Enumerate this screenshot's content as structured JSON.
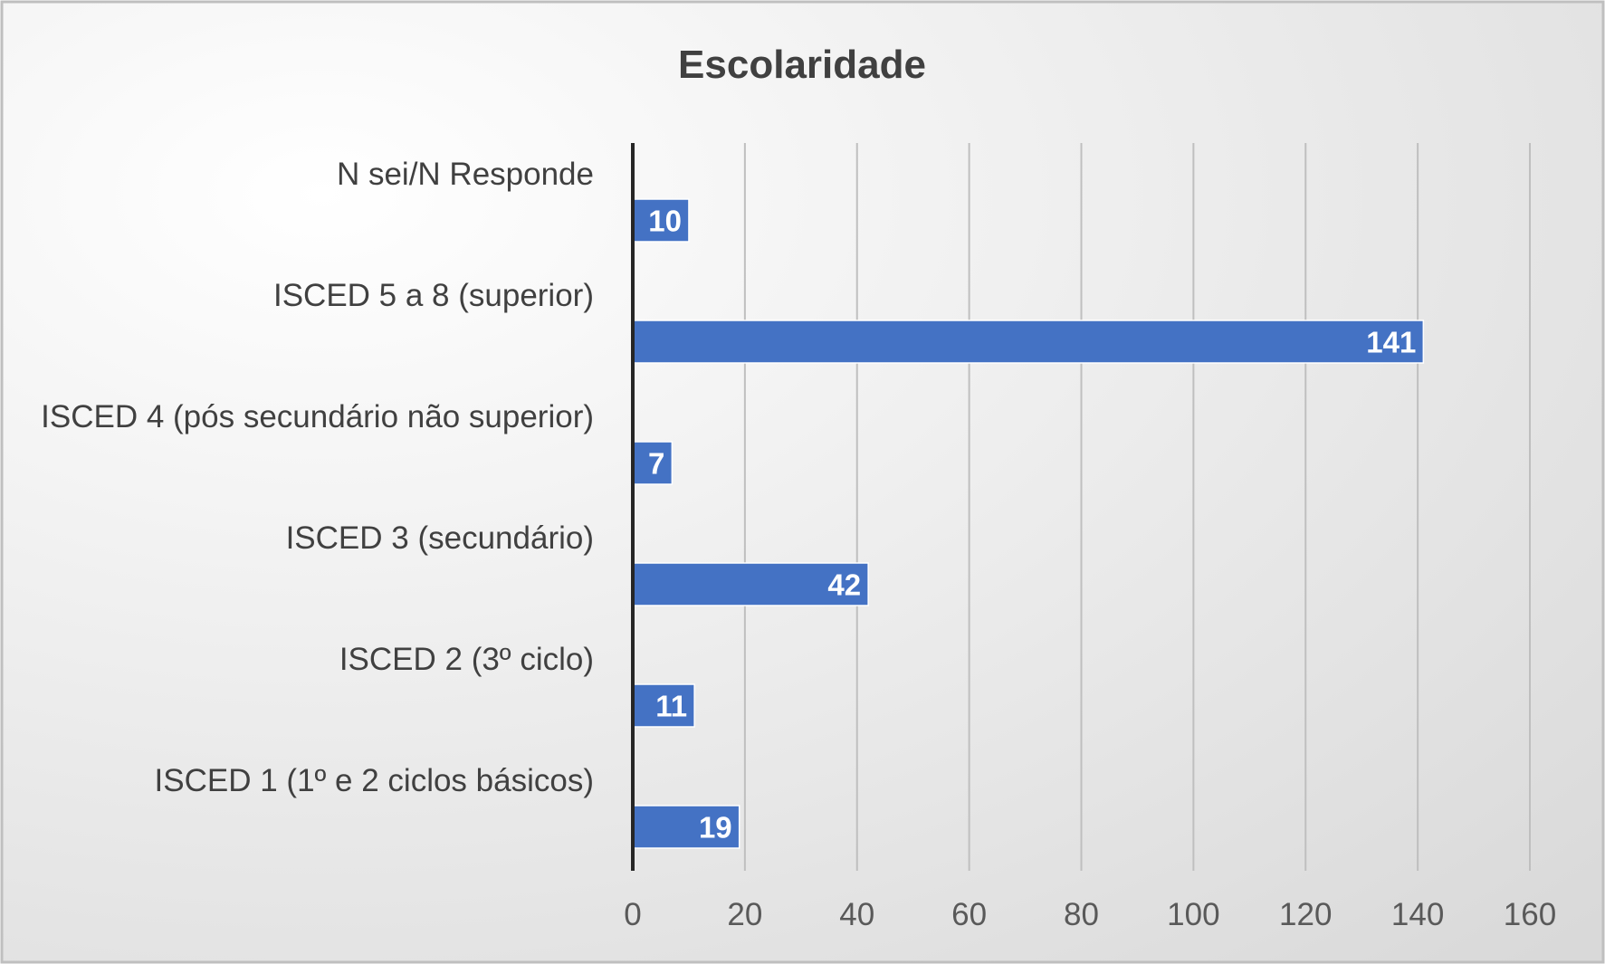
{
  "chart_data": {
    "type": "bar",
    "orientation": "horizontal",
    "title": "Escolaridade",
    "xlabel": "",
    "ylabel": "",
    "categories": [
      "N sei/N Responde",
      "ISCED 5 a 8 (superior)",
      "ISCED 4 (pós secundário não superior)",
      "ISCED 3 (secundário)",
      "ISCED 2 (3º ciclo)",
      "ISCED 1 (1º e 2 ciclos básicos)"
    ],
    "values": [
      10,
      141,
      7,
      42,
      11,
      19
    ],
    "data_labels": [
      "10",
      "141",
      "7",
      "42",
      "11",
      "19"
    ],
    "xlim": [
      0,
      160
    ],
    "ticks": [
      "0",
      "20",
      "40",
      "60",
      "80",
      "100",
      "120",
      "140",
      "160"
    ],
    "tick_values": [
      0,
      20,
      40,
      60,
      80,
      100,
      120,
      140,
      160
    ],
    "grid": "vertical",
    "legend": "none",
    "bar_color": "#4472C4",
    "background_gradient": [
      "#ffffff",
      "#d9d9d9"
    ],
    "border_color": "#bfbfbf"
  }
}
